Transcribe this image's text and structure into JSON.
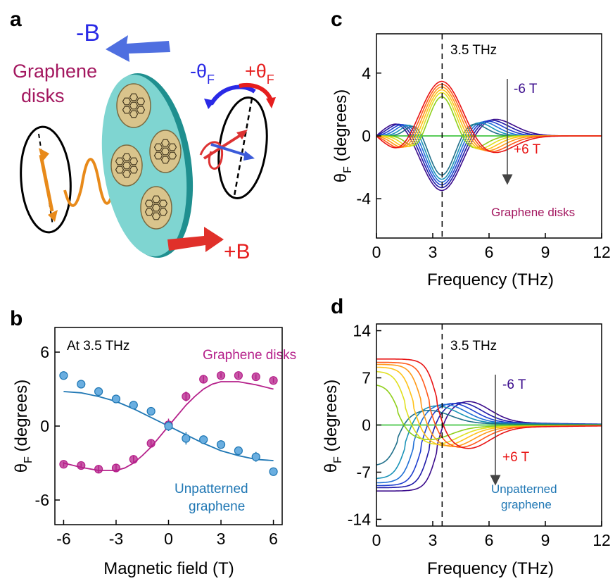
{
  "panel_labels": {
    "a": "a",
    "b": "b",
    "c": "c",
    "d": "d"
  },
  "schematic": {
    "minus_b": "-B",
    "plus_b": "+B",
    "minus_theta": "-θ",
    "plus_theta": "+θ",
    "theta_sub": "F",
    "disks_line1": "Graphene",
    "disks_line2": "disks",
    "colors": {
      "minus": "#2a2ae6",
      "plus": "#e61e1e",
      "disks": "#a3175f",
      "disk": "#7fd5d1"
    }
  },
  "chart_data": [
    {
      "id": "b",
      "type": "scatter",
      "xlabel": "Magnetic field (T)",
      "ylabel_main": "θ",
      "ylabel_sub": "F",
      "ylabel_rest": " (degrees)",
      "xlim": [
        -6.5,
        6.5
      ],
      "ylim": [
        -8,
        8
      ],
      "xticks": [
        -6,
        -3,
        0,
        3,
        6
      ],
      "yticks": [
        -6,
        0,
        6
      ],
      "annotations": {
        "freq": "At 3.5 THz",
        "disks": "Graphene disks",
        "unpat1": "Unpatterned",
        "unpat2": "graphene"
      },
      "series": [
        {
          "name": "Graphene disks",
          "color": "#b5208a",
          "x": [
            -6,
            -5,
            -4,
            -3,
            -2,
            -1,
            0,
            1,
            2,
            3,
            4,
            5,
            6
          ],
          "y": [
            -3.1,
            -3.2,
            -3.5,
            -3.4,
            -2.7,
            -1.4,
            0.1,
            2.4,
            3.8,
            4.1,
            4.1,
            4.0,
            3.7
          ],
          "err": [
            0.2,
            0.2,
            0.3,
            0.3,
            0.3,
            0.3,
            0.5,
            0.4,
            0.3,
            0.2,
            0.2,
            0.2,
            0.2
          ],
          "fit_x": [
            -6,
            -5,
            -4,
            -3,
            -2.5,
            -2,
            -1.5,
            -1,
            -0.5,
            0,
            0.5,
            1,
            1.5,
            2,
            2.5,
            3,
            4,
            5,
            6
          ],
          "fit_y": [
            -3.0,
            -3.35,
            -3.6,
            -3.6,
            -3.4,
            -3.0,
            -2.4,
            -1.7,
            -0.85,
            0,
            0.85,
            1.7,
            2.4,
            3.0,
            3.4,
            3.6,
            3.6,
            3.35,
            3.0
          ]
        },
        {
          "name": "Unpatterned graphene",
          "color": "#1f77b4",
          "fill": "#6aaee0",
          "x": [
            -6,
            -5,
            -4,
            -3,
            -2,
            -1,
            0,
            1,
            2,
            3,
            4,
            5,
            6
          ],
          "y": [
            4.1,
            3.4,
            2.8,
            2.2,
            1.7,
            1.2,
            0.0,
            -1.0,
            -1.1,
            -1.5,
            -2.0,
            -2.5,
            -3.7
          ],
          "err": [
            0.2,
            0.2,
            0.2,
            0.2,
            0.2,
            0.2,
            0.4,
            0.5,
            0.3,
            0.2,
            0.3,
            0.4,
            0.3
          ],
          "fit_x": [
            -6,
            -5,
            -4,
            -3,
            -2,
            -1,
            0,
            1,
            2,
            3,
            4,
            5,
            6
          ],
          "fit_y": [
            2.8,
            2.7,
            2.4,
            2.0,
            1.4,
            0.7,
            0.0,
            -0.7,
            -1.4,
            -2.0,
            -2.4,
            -2.7,
            -2.8
          ]
        }
      ]
    },
    {
      "id": "c",
      "type": "line",
      "xlabel": "Frequency (THz)",
      "ylabel_main": "θ",
      "ylabel_sub": "F",
      "ylabel_rest": " (degrees)",
      "xlim": [
        0,
        12
      ],
      "ylim": [
        -6.5,
        6.5
      ],
      "xticks": [
        0,
        3,
        6,
        9,
        12
      ],
      "yticks": [
        -4,
        0,
        4
      ],
      "marker_x": 3.5,
      "annotations": {
        "freq": "3.5 THz",
        "top": "-6 T",
        "bottom": "+6 T",
        "material": "Graphene disks"
      },
      "fields_T": [
        -6,
        -5,
        -4,
        -3,
        -2,
        -1,
        0,
        1,
        2,
        3,
        4,
        5,
        6
      ],
      "peak_height": [
        3.9,
        3.7,
        3.5,
        3.3,
        3.1,
        2.8,
        0,
        2.8,
        3.1,
        3.3,
        3.5,
        3.7,
        3.9
      ],
      "colors": [
        "#3b0c8c",
        "#1f1aa8",
        "#1f3fcf",
        "#1f6fd6",
        "#1a93b8",
        "#1f6f8a",
        "#22bb22",
        "#8fcf1a",
        "#e0e020",
        "#ffc21a",
        "#ff9a1a",
        "#ff5a1a",
        "#e81414"
      ]
    },
    {
      "id": "d",
      "type": "line",
      "xlabel": "Frequency (THz)",
      "ylabel_main": "θ",
      "ylabel_sub": "F",
      "ylabel_rest": " (degrees)",
      "xlim": [
        0,
        12
      ],
      "ylim": [
        -15,
        15
      ],
      "xticks": [
        0,
        3,
        6,
        9,
        12
      ],
      "yticks": [
        -14,
        -7,
        0,
        7,
        14
      ],
      "marker_x": 3.5,
      "annotations": {
        "freq": "3.5 THz",
        "top": "-6 T",
        "bottom": "+6 T",
        "unpat1": "Unpatterned",
        "unpat2": "graphene"
      },
      "fields_T": [
        -6,
        -5,
        -4,
        -3,
        -2,
        -1,
        0,
        1,
        2,
        3,
        4,
        5,
        6
      ],
      "zero_amp": [
        9.8,
        9.3,
        9.0,
        8.6,
        8.0,
        6.1,
        0,
        6.1,
        8.0,
        8.6,
        9.0,
        9.3,
        9.8
      ],
      "colors": [
        "#3b0c8c",
        "#1f1aa8",
        "#1f3fcf",
        "#1f6fd6",
        "#1a93b8",
        "#1f6f8a",
        "#22bb22",
        "#8fcf1a",
        "#e0e020",
        "#ffc21a",
        "#ff9a1a",
        "#ff5a1a",
        "#e81414"
      ]
    }
  ]
}
